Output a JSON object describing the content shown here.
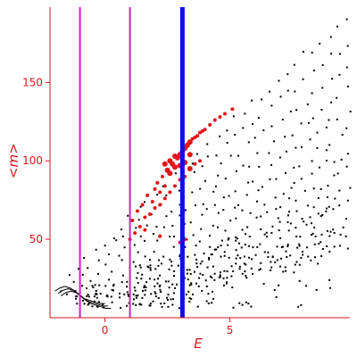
{
  "chart_data": {
    "type": "scatter",
    "title": "",
    "xlabel": "E",
    "ylabel": "<m>",
    "xlim": [
      -2.2,
      9.8
    ],
    "ylim": [
      0,
      198
    ],
    "x_ticks": [
      0,
      5
    ],
    "x_tick_labels": [
      "0",
      "5"
    ],
    "y_ticks": [
      50,
      100,
      150
    ],
    "y_tick_labels": [
      "50",
      "100",
      "150"
    ],
    "grid": false,
    "legend": "none",
    "colors": {
      "axes": "#e0161b",
      "points_black": "#000000",
      "points_red": "#e0161b",
      "line_magenta": "#cc22cc",
      "line_blue": "#1010e0"
    },
    "vertical_lines": [
      {
        "x": -1.0,
        "color": "#cc22cc",
        "width": 2
      },
      {
        "x": 1.0,
        "color": "#cc22cc",
        "width": 2
      },
      {
        "x": 3.1,
        "color": "#1010e0",
        "width": 5
      }
    ],
    "series": [
      {
        "color": "#000000",
        "description": "dense black point bands fanning from low E to high E",
        "bands": [
          {
            "x0": -1.8,
            "y0": 18,
            "x1": 9.7,
            "y1": 192
          },
          {
            "x0": -1.6,
            "y0": 15,
            "x1": 9.7,
            "y1": 175
          },
          {
            "x0": -1.2,
            "y0": 14,
            "x1": 9.7,
            "y1": 160
          },
          {
            "x0": -0.9,
            "y0": 12,
            "x1": 9.7,
            "y1": 145
          },
          {
            "x0": -0.6,
            "y0": 11,
            "x1": 9.7,
            "y1": 132
          },
          {
            "x0": -0.3,
            "y0": 10,
            "x1": 9.7,
            "y1": 118
          },
          {
            "x0": 0.0,
            "y0": 9,
            "x1": 9.7,
            "y1": 106
          },
          {
            "x0": 0.3,
            "y0": 8,
            "x1": 9.7,
            "y1": 94
          },
          {
            "x0": 0.6,
            "y0": 8,
            "x1": 9.7,
            "y1": 82
          },
          {
            "x0": 0.9,
            "y0": 8,
            "x1": 9.7,
            "y1": 72
          },
          {
            "x0": 1.2,
            "y0": 8,
            "x1": 9.7,
            "y1": 62
          },
          {
            "x0": 1.5,
            "y0": 8,
            "x1": 9.7,
            "y1": 54
          },
          {
            "x0": 1.8,
            "y0": 8,
            "x1": 9.7,
            "y1": 46
          }
        ],
        "hook_curve": [
          [
            -2.0,
            17
          ],
          [
            -1.8,
            19
          ],
          [
            -1.6,
            20
          ],
          [
            -1.4,
            19
          ],
          [
            -1.2,
            17
          ],
          [
            -1.0,
            14
          ],
          [
            -0.8,
            12
          ],
          [
            -0.6,
            11
          ],
          [
            -0.4,
            10
          ],
          [
            -0.2,
            9
          ],
          [
            0.0,
            9
          ]
        ]
      },
      {
        "color": "#e0161b",
        "description": "red highlighted points",
        "points": [
          [
            1.1,
            62
          ],
          [
            1.3,
            68
          ],
          [
            1.5,
            72
          ],
          [
            1.7,
            78
          ],
          [
            1.9,
            74
          ],
          [
            2.0,
            82
          ],
          [
            2.1,
            86
          ],
          [
            2.2,
            80
          ],
          [
            2.3,
            90
          ],
          [
            2.4,
            84
          ],
          [
            2.5,
            94
          ],
          [
            2.6,
            92
          ],
          [
            2.7,
            98
          ],
          [
            2.8,
            96
          ],
          [
            2.9,
            102
          ],
          [
            3.0,
            104
          ],
          [
            3.1,
            106
          ],
          [
            3.2,
            108
          ],
          [
            3.3,
            110
          ],
          [
            3.4,
            112
          ],
          [
            3.5,
            114
          ],
          [
            3.6,
            115
          ],
          [
            3.7,
            116
          ],
          [
            3.8,
            118
          ],
          [
            3.9,
            119
          ],
          [
            4.0,
            120
          ],
          [
            4.2,
            123
          ],
          [
            4.4,
            126
          ],
          [
            4.6,
            128
          ],
          [
            4.8,
            130
          ],
          [
            5.1,
            133
          ],
          [
            1.4,
            58
          ],
          [
            1.6,
            64
          ],
          [
            1.8,
            66
          ],
          [
            2.0,
            70
          ],
          [
            2.2,
            72
          ],
          [
            2.4,
            76
          ],
          [
            2.6,
            80
          ],
          [
            2.8,
            84
          ],
          [
            3.0,
            88
          ],
          [
            3.2,
            90
          ],
          [
            3.4,
            95
          ],
          [
            3.6,
            98
          ],
          [
            3.8,
            100
          ],
          [
            2.4,
            98
          ],
          [
            2.6,
            100
          ],
          [
            2.8,
            103
          ],
          [
            3.0,
            97
          ],
          [
            3.2,
            99
          ],
          [
            3.4,
            104
          ],
          [
            3.0,
            48
          ],
          [
            3.2,
            50
          ],
          [
            2.2,
            52
          ],
          [
            1.6,
            56
          ],
          [
            1.0,
            50
          ],
          [
            1.2,
            54
          ]
        ]
      }
    ]
  }
}
